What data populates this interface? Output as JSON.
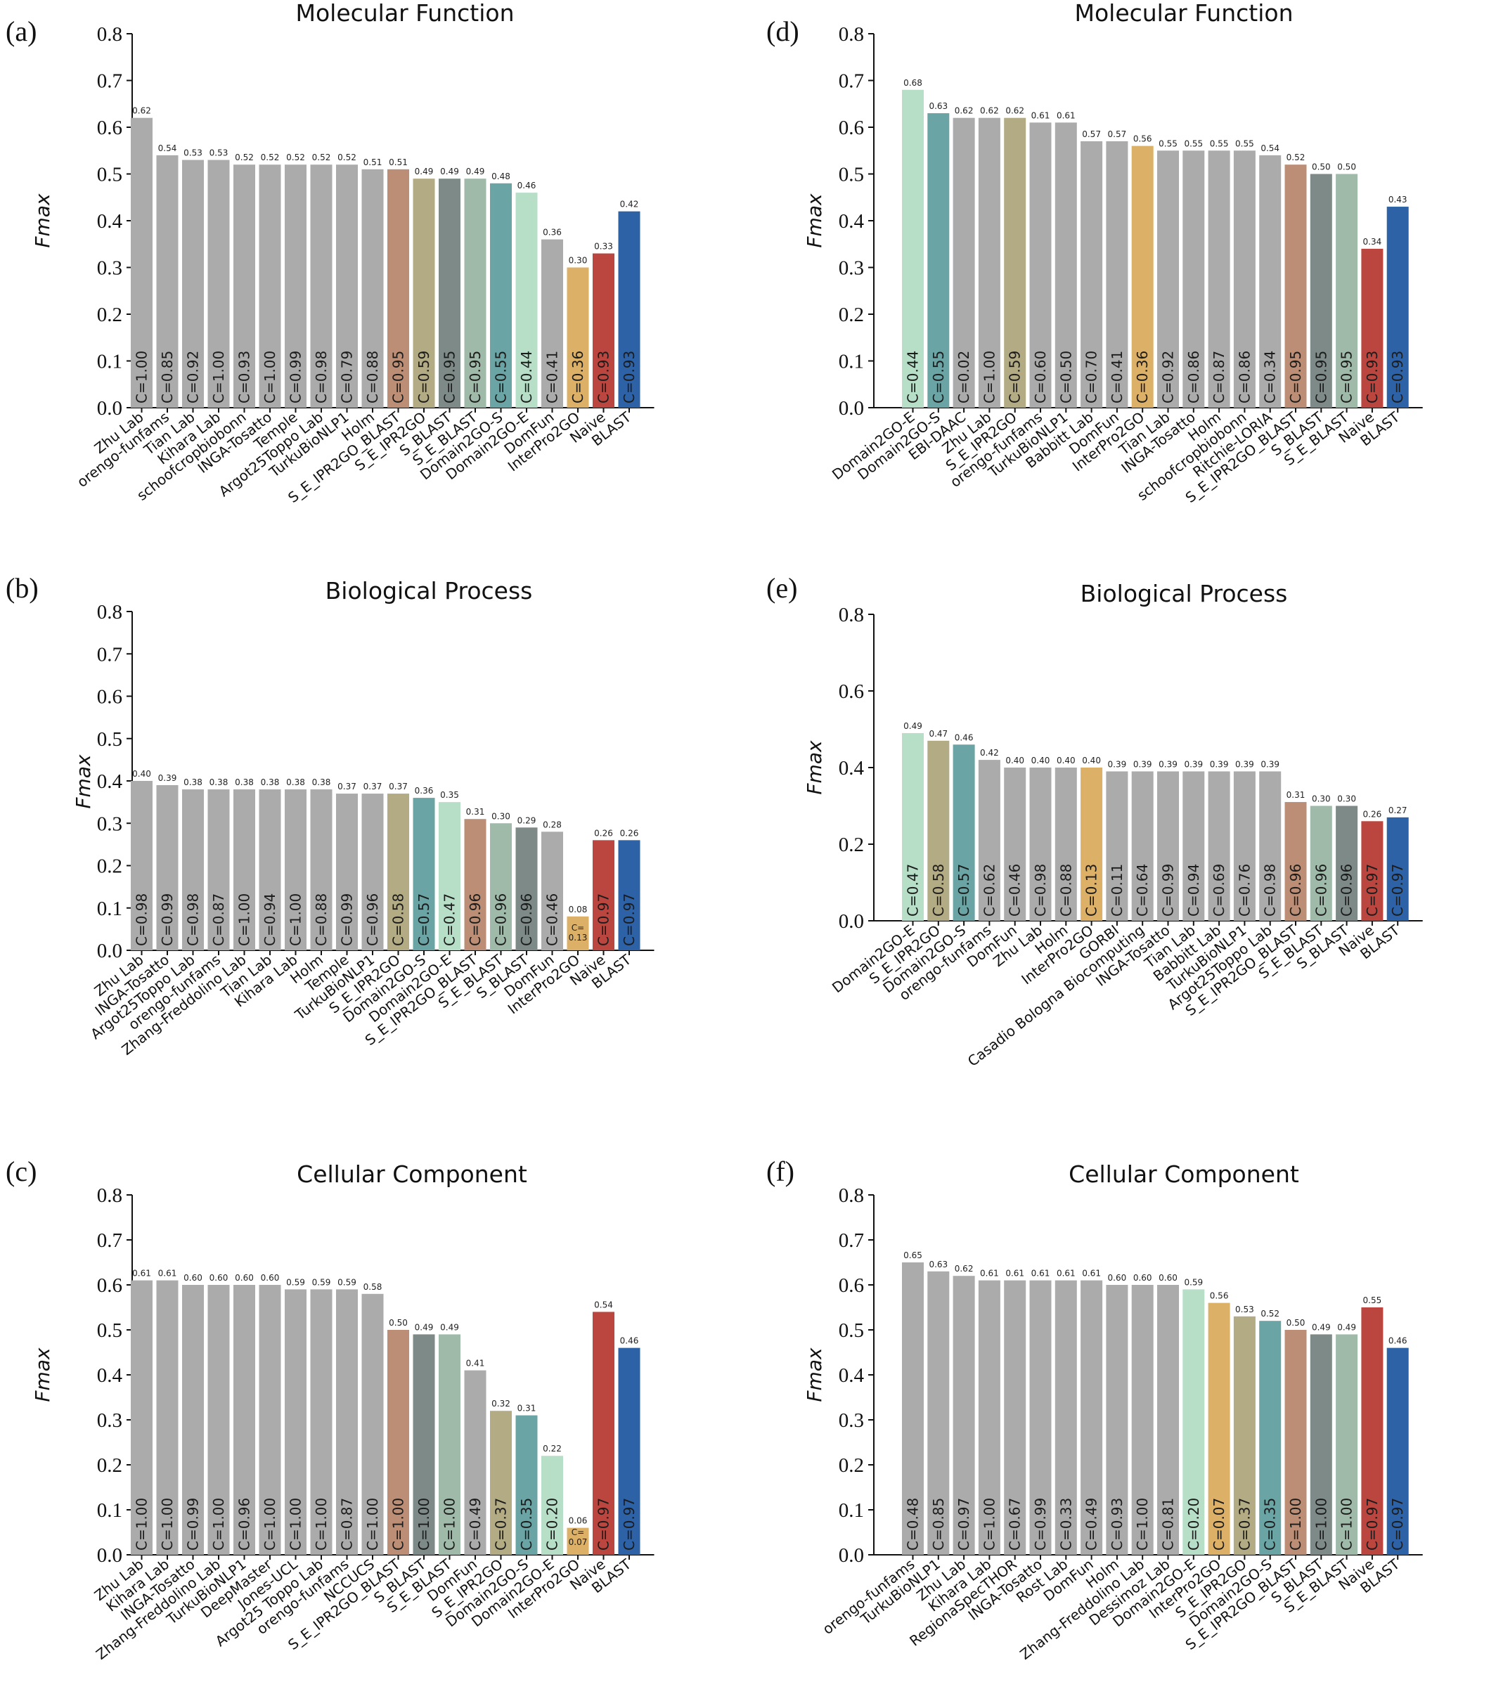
{
  "colors": {
    "default": "#ababab",
    "S_E_IPR2GO_BLAST": "#bb8e75",
    "S_E_IPR2GO": "#b3ab83",
    "S_BLAST": "#7d8a87",
    "S_E_BLAST": "#9fbaa9",
    "Domain2GO-S": "#6aa4a4",
    "Domain2GO-E": "#b7dfc8",
    "InterPro2GO": "#dcb067",
    "Naive": "#bb463f",
    "BLAST": "#2d62a7"
  },
  "chart_data": [
    {
      "panel": "(a)",
      "type": "bar",
      "title": "Molecular Function",
      "ylabel": "Fmax",
      "ylim": [
        0,
        0.8
      ],
      "yticks": [
        "0.0",
        "0.1",
        "0.2",
        "0.3",
        "0.4",
        "0.5",
        "0.6",
        "0.7",
        "0.8"
      ],
      "categories": [
        "Zhu Lab",
        "orengo-funfams",
        "Tian Lab",
        "Kihara Lab",
        "schoofcropbiobonn",
        "INGA-Tosatto",
        "Temple",
        "Argot25Toppo Lab",
        "TurkuBioNLP1",
        "Holm",
        "S_E_IPR2GO_BLAST",
        "S_E_IPR2GO",
        "S_BLAST",
        "S_E_BLAST",
        "Domain2GO-S",
        "Domain2GO-E",
        "DomFun",
        "InterPro2GO",
        "Naive",
        "BLAST"
      ],
      "values": [
        0.62,
        0.54,
        0.53,
        0.53,
        0.52,
        0.52,
        0.52,
        0.52,
        0.52,
        0.51,
        0.51,
        0.49,
        0.49,
        0.49,
        0.48,
        0.46,
        0.36,
        0.3,
        0.33,
        0.42
      ],
      "value_labels": [
        "0.62",
        "0.54",
        "0.53",
        "0.53",
        "0.52",
        "0.52",
        "0.52",
        "0.52",
        "0.52",
        "0.51",
        "0.51",
        "0.49",
        "0.49",
        "0.49",
        "0.48",
        "0.46",
        "0.36",
        "0.30",
        "0.33",
        "0.42"
      ],
      "coverage": [
        "C=1.00",
        "C=0.85",
        "C=0.92",
        "C=1.00",
        "C=0.93",
        "C=1.00",
        "C=0.99",
        "C=0.98",
        "C=0.79",
        "C=0.88",
        "C=0.95",
        "C=0.59",
        "C=0.95",
        "C=0.95",
        "C=0.55",
        "C=0.44",
        "C=0.41",
        "C=0.36",
        "C=0.93",
        "C=0.93"
      ]
    },
    {
      "panel": "(b)",
      "type": "bar",
      "title": "Biological Process",
      "ylabel": "Fmax",
      "ylim": [
        0,
        0.8
      ],
      "yticks": [
        "0.0",
        "0.1",
        "0.2",
        "0.3",
        "0.4",
        "0.5",
        "0.6",
        "0.7",
        "0.8"
      ],
      "categories": [
        "Zhu Lab",
        "INGA-Tosatto",
        "Argot25Toppo Lab",
        "orengo-funfams",
        "Zhang-Freddolino Lab",
        "Tian Lab",
        "Kihara Lab",
        "Holm",
        "Temple",
        "TurkuBioNLP1",
        "S_E_IPR2GO",
        "Domain2GO-S",
        "Domain2GO-E",
        "S_E_IPR2GO_BLAST",
        "S_E_BLAST",
        "S_BLAST",
        "DomFun",
        "InterPro2GO",
        "Naive",
        "BLAST"
      ],
      "values": [
        0.4,
        0.39,
        0.38,
        0.38,
        0.38,
        0.38,
        0.38,
        0.38,
        0.37,
        0.37,
        0.37,
        0.36,
        0.35,
        0.31,
        0.3,
        0.29,
        0.28,
        0.08,
        0.26,
        0.26
      ],
      "value_labels": [
        "0.40",
        "0.39",
        "0.38",
        "0.38",
        "0.38",
        "0.38",
        "0.38",
        "0.38",
        "0.37",
        "0.37",
        "0.37",
        "0.36",
        "0.35",
        "0.31",
        "0.30",
        "0.29",
        "0.28",
        "0.08",
        "0.26",
        "0.26"
      ],
      "coverage": [
        "C=0.98",
        "C=0.99",
        "C=0.98",
        "C=0.87",
        "C=1.00",
        "C=0.94",
        "C=1.00",
        "C=0.88",
        "C=0.99",
        "C=0.96",
        "C=0.58",
        "C=0.57",
        "C=0.47",
        "C=0.96",
        "C=0.96",
        "C=0.96",
        "C=0.46",
        "C=0.13",
        "C=0.97",
        "C=0.97"
      ]
    },
    {
      "panel": "(c)",
      "type": "bar",
      "title": "Cellular Component",
      "ylabel": "Fmax",
      "ylim": [
        0,
        0.8
      ],
      "yticks": [
        "0.0",
        "0.1",
        "0.2",
        "0.3",
        "0.4",
        "0.5",
        "0.6",
        "0.7",
        "0.8"
      ],
      "categories": [
        "Zhu Lab",
        "Kihara Lab",
        "INGA-Tosatto",
        "Zhang-Freddolino Lab",
        "TurkuBioNLP1",
        "DeepMaster",
        "Jones-UCL",
        "Argot25 Toppo Lab",
        "orengo-funfams",
        "NCCUCS",
        "S_E_IPR2GO_BLAST",
        "S_BLAST",
        "S_E_BLAST",
        "DomFun",
        "S_E_IPR2GO",
        "Domain2GO-S",
        "Domain2GO-E",
        "InterPro2GO",
        "Naive",
        "BLAST"
      ],
      "values": [
        0.61,
        0.61,
        0.6,
        0.6,
        0.6,
        0.6,
        0.59,
        0.59,
        0.59,
        0.58,
        0.5,
        0.49,
        0.49,
        0.41,
        0.32,
        0.31,
        0.22,
        0.06,
        0.54,
        0.46
      ],
      "value_labels": [
        "0.61",
        "0.61",
        "0.60",
        "0.60",
        "0.60",
        "0.60",
        "0.59",
        "0.59",
        "0.59",
        "0.58",
        "0.50",
        "0.49",
        "0.49",
        "0.41",
        "0.32",
        "0.31",
        "0.22",
        "0.06",
        "0.54",
        "0.46"
      ],
      "coverage": [
        "C=1.00",
        "C=1.00",
        "C=0.99",
        "C=1.00",
        "C=0.96",
        "C=1.00",
        "C=1.00",
        "C=1.00",
        "C=0.87",
        "C=1.00",
        "C=1.00",
        "C=1.00",
        "C=1.00",
        "C=0.49",
        "C=0.37",
        "C=0.35",
        "C=0.20",
        "C=0.07",
        "C=0.97",
        "C=0.97"
      ]
    },
    {
      "panel": "(d)",
      "type": "bar",
      "title": "Molecular Function",
      "ylabel": "Fmax",
      "ylim": [
        0,
        0.8
      ],
      "yticks": [
        "0.0",
        "0.1",
        "0.2",
        "0.3",
        "0.4",
        "0.5",
        "0.6",
        "0.7",
        "0.8"
      ],
      "categories": [
        "Domain2GO-E",
        "Domain2GO-S",
        "EBI-DAAC",
        "Zhu Lab",
        "S_E_IPR2GO",
        "orengo-funfams",
        "TurkuBioNLP1",
        "Babbitt Lab",
        "DomFun",
        "InterPro2GO",
        "Tian Lab",
        "INGA-Tosatto",
        "Holm",
        "schoofcropbiobonn",
        "Ritchie-LORIA",
        "S_E_IPR2GO_BLAST",
        "S_BLAST",
        "S_E_BLAST",
        "Naive",
        "BLAST"
      ],
      "values": [
        0.68,
        0.63,
        0.62,
        0.62,
        0.62,
        0.61,
        0.61,
        0.57,
        0.57,
        0.56,
        0.55,
        0.55,
        0.55,
        0.55,
        0.54,
        0.52,
        0.5,
        0.5,
        0.34,
        0.43
      ],
      "value_labels": [
        "0.68",
        "0.63",
        "0.62",
        "0.62",
        "0.62",
        "0.61",
        "0.61",
        "0.57",
        "0.57",
        "0.56",
        "0.55",
        "0.55",
        "0.55",
        "0.55",
        "0.54",
        "0.52",
        "0.50",
        "0.50",
        "0.34",
        "0.43"
      ],
      "coverage": [
        "C=0.44",
        "C=0.55",
        "C=0.02",
        "C=1.00",
        "C=0.59",
        "C=0.60",
        "C=0.50",
        "C=0.70",
        "C=0.41",
        "C=0.36",
        "C=0.92",
        "C=0.86",
        "C=0.87",
        "C=0.86",
        "C=0.34",
        "C=0.95",
        "C=0.95",
        "C=0.95",
        "C=0.93",
        "C=0.93"
      ]
    },
    {
      "panel": "(e)",
      "type": "bar",
      "title": "Biological Process",
      "ylabel": "Fmax",
      "ylim": [
        0,
        0.8
      ],
      "yticks": [
        "0.0",
        "0.2",
        "0.4",
        "0.6",
        "0.8"
      ],
      "categories": [
        "Domain2GO-E",
        "S_E_IPR2GO",
        "Domain2GO-S",
        "orengo-funfams",
        "DomFun",
        "Zhu Lab",
        "Holm",
        "InterPro2GO",
        "GORBI",
        "Casadio Bologna Biocomputing",
        "INGA-Tosatto",
        "Tian Lab",
        "Babbitt Lab",
        "TurkuBioNLP1",
        "Argot25Toppo Lab",
        "S_E_IPR2GO_BLAST",
        "S_E_BLAST",
        "S_BLAST",
        "Naive",
        "BLAST"
      ],
      "values": [
        0.49,
        0.47,
        0.46,
        0.42,
        0.4,
        0.4,
        0.4,
        0.4,
        0.39,
        0.39,
        0.39,
        0.39,
        0.39,
        0.39,
        0.39,
        0.31,
        0.3,
        0.3,
        0.26,
        0.27
      ],
      "value_labels": [
        "0.49",
        "0.47",
        "0.46",
        "0.42",
        "0.40",
        "0.40",
        "0.40",
        "0.40",
        "0.39",
        "0.39",
        "0.39",
        "0.39",
        "0.39",
        "0.39",
        "0.39",
        "0.31",
        "0.30",
        "0.30",
        "0.26",
        "0.27"
      ],
      "coverage": [
        "C=0.47",
        "C=0.58",
        "C=0.57",
        "C=0.62",
        "C=0.46",
        "C=0.98",
        "C=0.88",
        "C=0.13",
        "C=0.11",
        "C=0.64",
        "C=0.99",
        "C=0.94",
        "C=0.69",
        "C=0.76",
        "C=0.98",
        "C=0.96",
        "C=0.96",
        "C=0.96",
        "C=0.97",
        "C=0.97"
      ]
    },
    {
      "panel": "(f)",
      "type": "bar",
      "title": "Cellular Component",
      "ylabel": "Fmax",
      "ylim": [
        0,
        0.8
      ],
      "yticks": [
        "0.0",
        "0.1",
        "0.2",
        "0.3",
        "0.4",
        "0.5",
        "0.6",
        "0.7",
        "0.8"
      ],
      "categories": [
        "orengo-funfams",
        "TurkuBioNLP1",
        "Zhu Lab",
        "Kihara Lab",
        "RegionaSpecTHOR",
        "INGA-Tosatto",
        "Rost Lab",
        "DomFun",
        "Holm",
        "Zhang-Freddolino Lab",
        "Dessimoz Lab",
        "Domain2GO-E",
        "InterPro2GO",
        "S_E_IPR2GO",
        "Domain2GO-S",
        "S_E_IPR2GO_BLAST",
        "S_BLAST",
        "S_E_BLAST",
        "Naive",
        "BLAST"
      ],
      "values": [
        0.65,
        0.63,
        0.62,
        0.61,
        0.61,
        0.61,
        0.61,
        0.61,
        0.6,
        0.6,
        0.6,
        0.59,
        0.56,
        0.53,
        0.52,
        0.5,
        0.49,
        0.49,
        0.55,
        0.46
      ],
      "value_labels": [
        "0.65",
        "0.63",
        "0.62",
        "0.61",
        "0.61",
        "0.61",
        "0.61",
        "0.61",
        "0.60",
        "0.60",
        "0.60",
        "0.59",
        "0.56",
        "0.53",
        "0.52",
        "0.50",
        "0.49",
        "0.49",
        "0.55",
        "0.46"
      ],
      "coverage": [
        "C=0.48",
        "C=0.85",
        "C=0.97",
        "C=1.00",
        "C=0.67",
        "C=0.99",
        "C=0.33",
        "C=0.49",
        "C=0.93",
        "C=1.00",
        "C=0.81",
        "C=0.20",
        "C=0.07",
        "C=0.37",
        "C=0.35",
        "C=1.00",
        "C=1.00",
        "C=1.00",
        "C=0.97",
        "C=0.97"
      ]
    }
  ]
}
